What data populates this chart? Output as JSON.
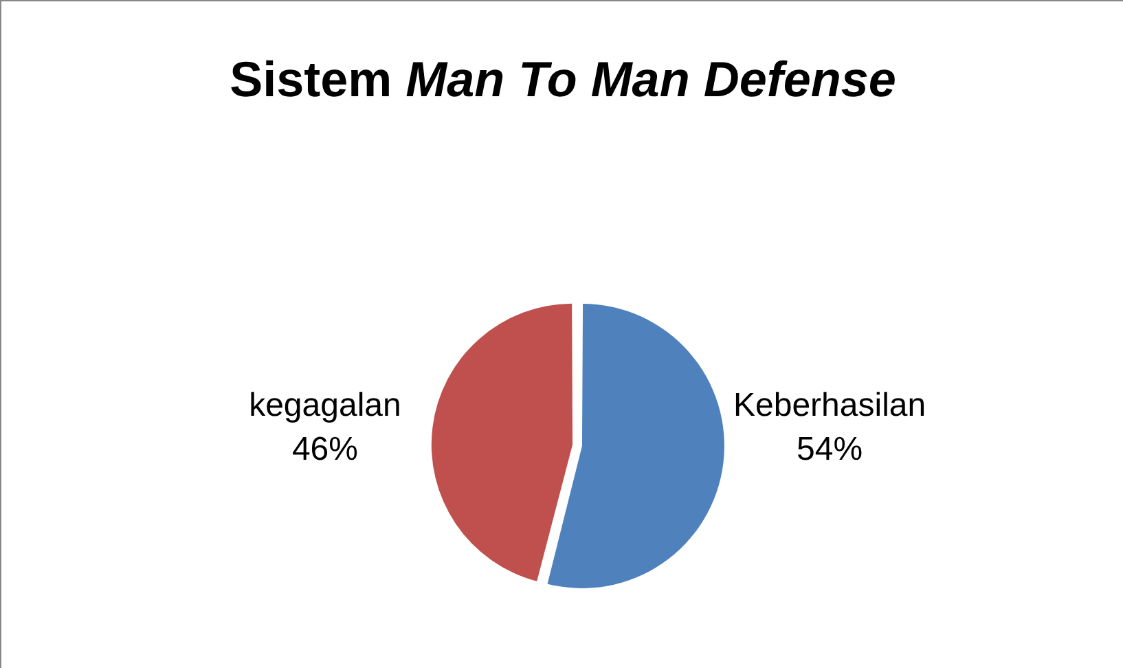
{
  "chart_data": {
    "type": "pie",
    "title": "Sistem Man To Man Defense",
    "categories": [
      "Keberhasilan",
      "kegagalan"
    ],
    "values": [
      54,
      46
    ],
    "colors": [
      "#4f81bd",
      "#c0504d"
    ],
    "value_labels": [
      "54%",
      "46%"
    ],
    "legend": false
  }
}
